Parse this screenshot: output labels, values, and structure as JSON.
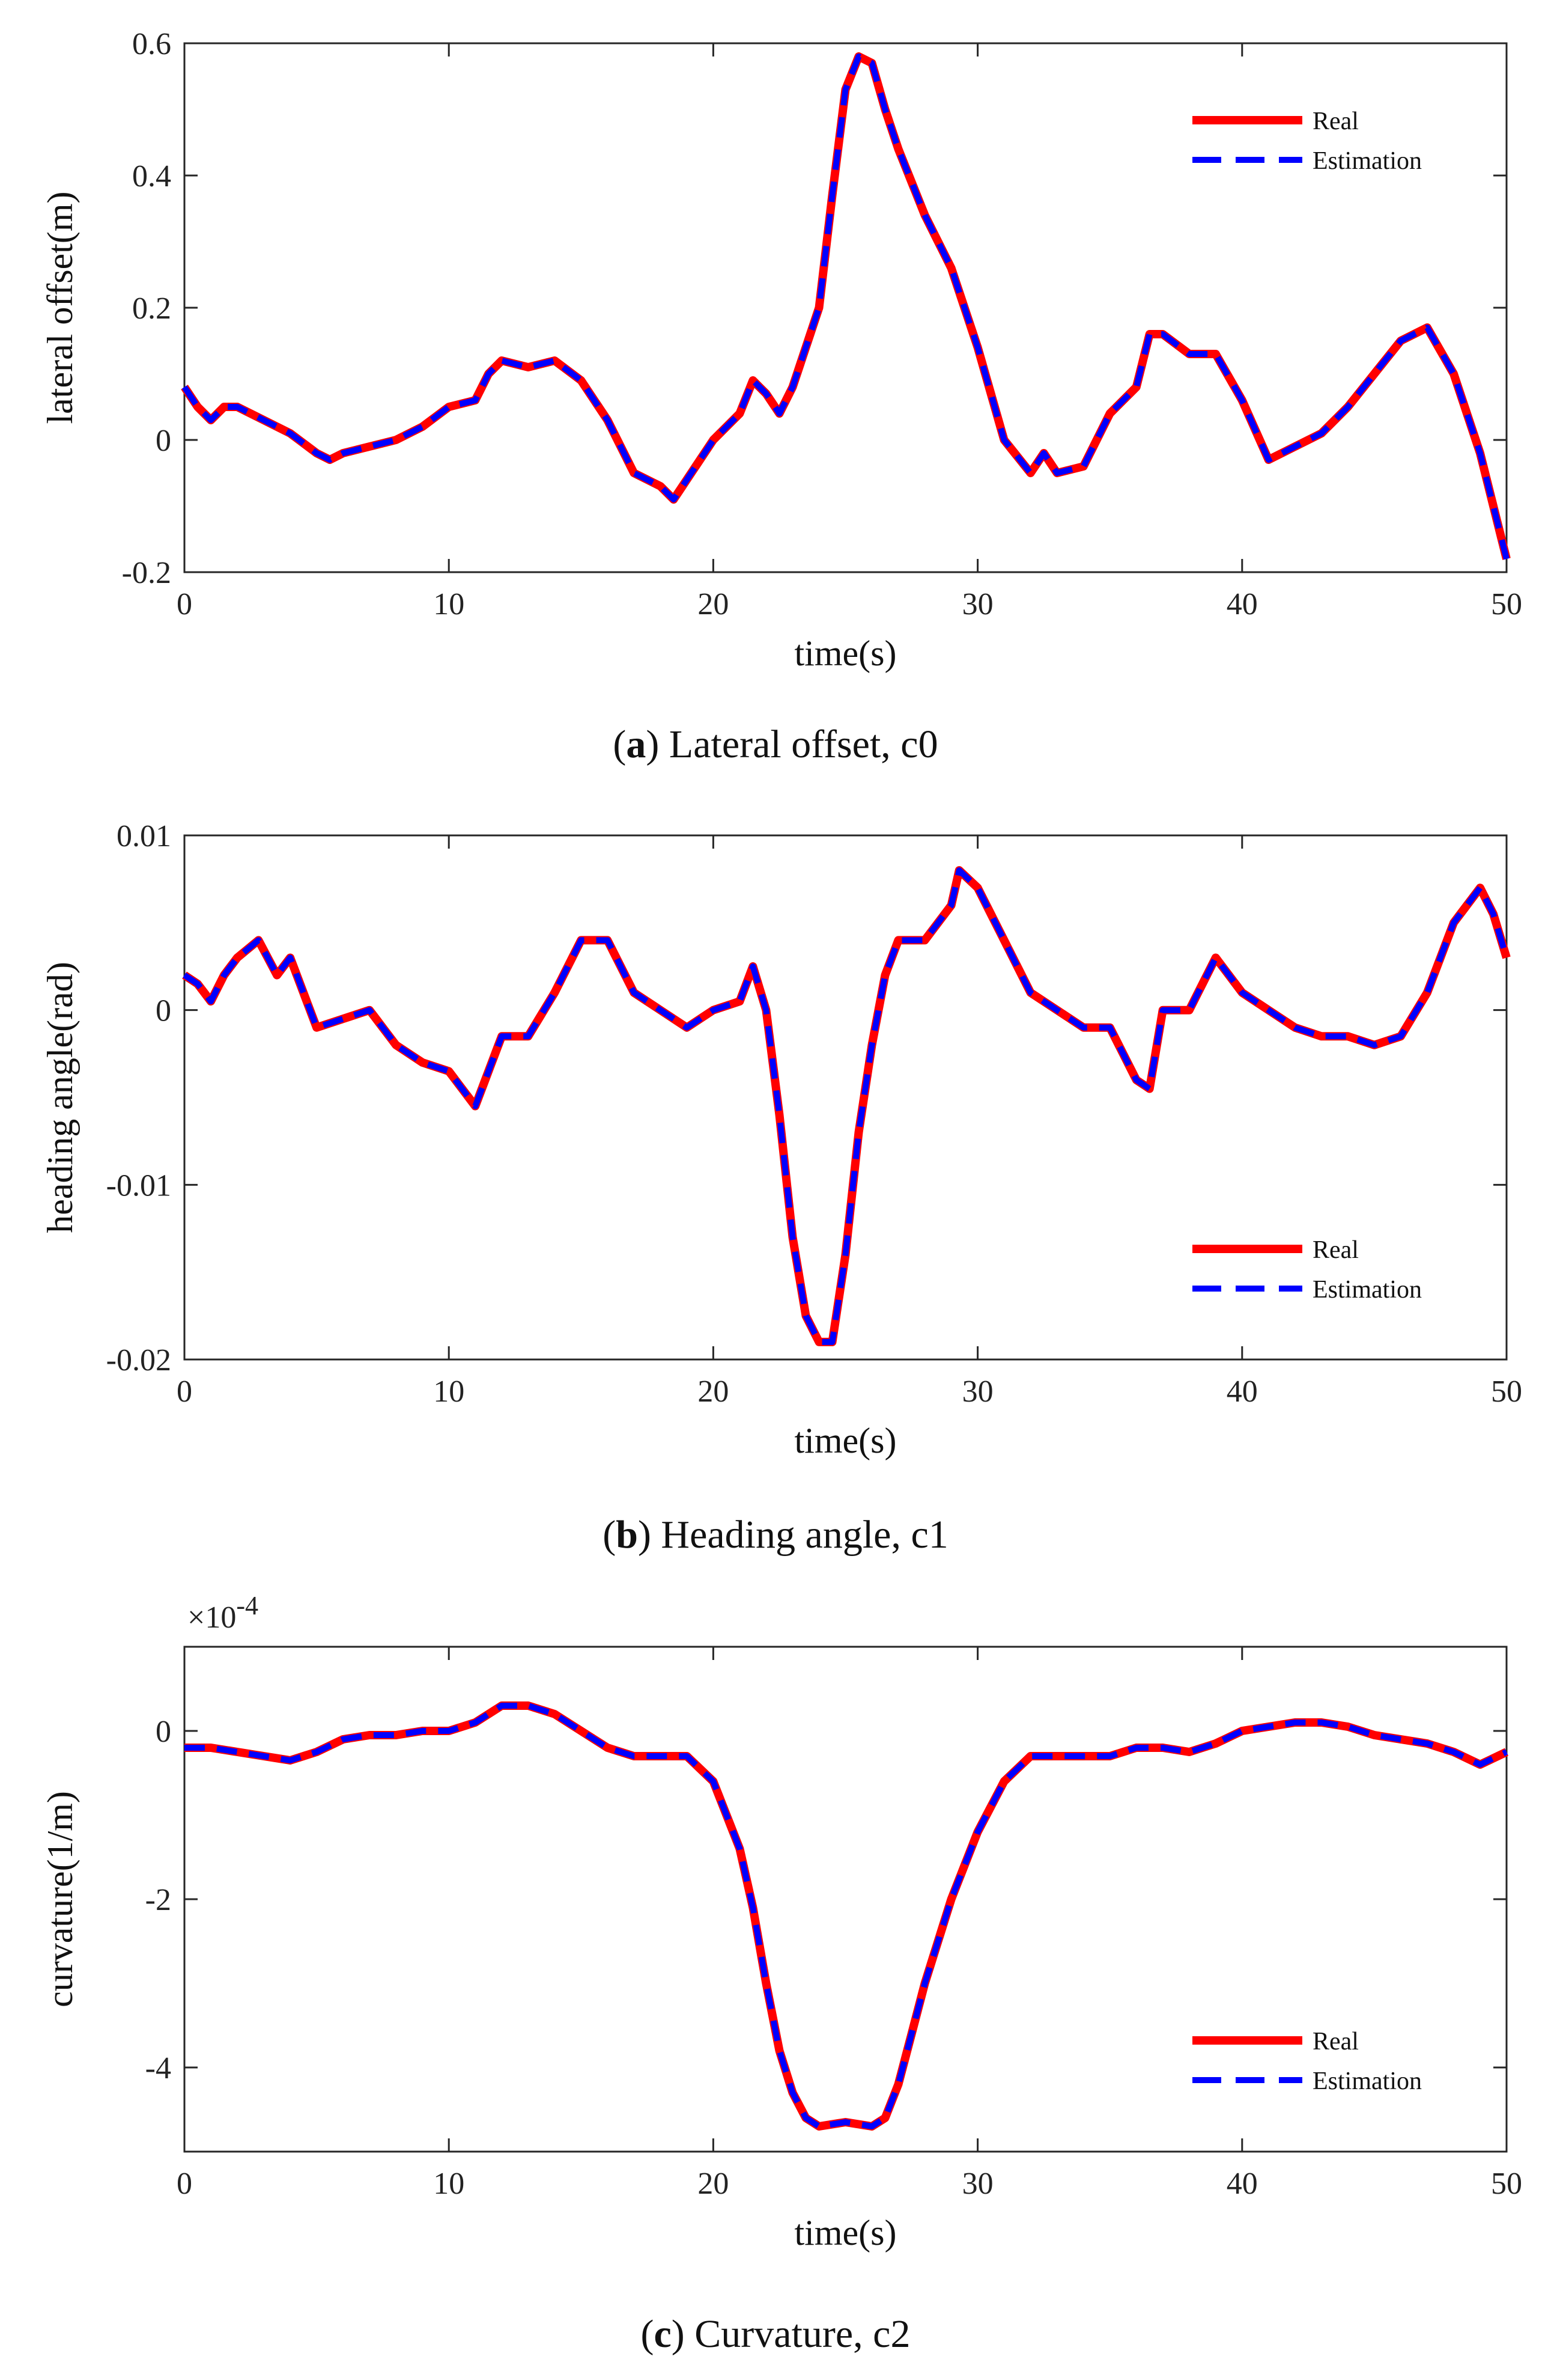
{
  "chart_data": [
    {
      "type": "line",
      "caption_letter": "a",
      "caption_text": "Lateral offset, c0",
      "xlabel": "time(s)",
      "ylabel": "lateral offset(m)",
      "xlim": [
        0,
        50
      ],
      "ylim": [
        -0.2,
        0.6
      ],
      "xticks": [
        0,
        10,
        20,
        30,
        40,
        50
      ],
      "xtick_labels": [
        "0",
        "10",
        "20",
        "30",
        "40",
        "50"
      ],
      "yticks": [
        -0.2,
        0,
        0.2,
        0.4,
        0.6
      ],
      "ytick_labels": [
        "-0.2",
        "0",
        "0.2",
        "0.4",
        "0.6"
      ],
      "exponent_label": "",
      "legend": [
        "Real",
        "Estimation"
      ],
      "legend_position": "top-right",
      "series": [
        {
          "name": "Real",
          "color": "#ff0000"
        },
        {
          "name": "Estimation",
          "color": "#0000ff"
        }
      ],
      "x": [
        0,
        0.5,
        1,
        1.5,
        2,
        3,
        4,
        5,
        5.5,
        6,
        7,
        8,
        9,
        10,
        11,
        11.5,
        12,
        13,
        14,
        15,
        16,
        17,
        18,
        18.5,
        19,
        20,
        21,
        21.5,
        22,
        22.5,
        23,
        24,
        24.5,
        25,
        25.5,
        26,
        26.5,
        27,
        28,
        29,
        30,
        31,
        32,
        32.5,
        33,
        34,
        35,
        36,
        36.5,
        37,
        38,
        39,
        40,
        41,
        42,
        43,
        44,
        45,
        46,
        47,
        48,
        49,
        50
      ],
      "y": [
        0.08,
        0.05,
        0.03,
        0.05,
        0.05,
        0.03,
        0.01,
        -0.02,
        -0.03,
        -0.02,
        -0.01,
        0.0,
        0.02,
        0.05,
        0.06,
        0.1,
        0.12,
        0.11,
        0.12,
        0.09,
        0.03,
        -0.05,
        -0.07,
        -0.09,
        -0.06,
        0.0,
        0.04,
        0.09,
        0.07,
        0.04,
        0.08,
        0.2,
        0.37,
        0.53,
        0.58,
        0.57,
        0.5,
        0.44,
        0.34,
        0.26,
        0.14,
        0.0,
        -0.05,
        -0.02,
        -0.05,
        -0.04,
        0.04,
        0.08,
        0.16,
        0.16,
        0.13,
        0.13,
        0.06,
        -0.03,
        -0.01,
        0.01,
        0.05,
        0.1,
        0.15,
        0.17,
        0.1,
        -0.02,
        -0.18
      ]
    },
    {
      "type": "line",
      "caption_letter": "b",
      "caption_text": "Heading angle, c1",
      "xlabel": "time(s)",
      "ylabel": "heading angle(rad)",
      "xlim": [
        0,
        50
      ],
      "ylim": [
        -0.02,
        0.01
      ],
      "xticks": [
        0,
        10,
        20,
        30,
        40,
        50
      ],
      "xtick_labels": [
        "0",
        "10",
        "20",
        "30",
        "40",
        "50"
      ],
      "yticks": [
        -0.02,
        -0.01,
        0,
        0.01
      ],
      "ytick_labels": [
        "-0.02",
        "-0.01",
        "0",
        "0.01"
      ],
      "exponent_label": "",
      "legend": [
        "Real",
        "Estimation"
      ],
      "legend_position": "lower-right",
      "series": [
        {
          "name": "Real",
          "color": "#ff0000"
        },
        {
          "name": "Estimation",
          "color": "#0000ff"
        }
      ],
      "x": [
        0,
        0.5,
        1,
        1.5,
        2,
        2.8,
        3.5,
        4,
        5,
        6,
        7,
        8,
        9,
        10,
        11,
        12,
        13,
        14,
        15,
        16,
        17,
        18,
        19,
        20,
        21,
        21.5,
        22,
        22.5,
        23,
        23.5,
        24,
        24.5,
        25,
        25.5,
        26,
        26.5,
        27,
        28,
        29,
        29.3,
        30,
        31,
        32,
        33,
        34,
        35,
        36,
        36.5,
        37,
        38,
        39,
        40,
        41,
        42,
        43,
        44,
        45,
        46,
        47,
        48,
        49,
        49.5,
        50
      ],
      "y": [
        0.002,
        0.0015,
        0.0005,
        0.002,
        0.003,
        0.004,
        0.002,
        0.003,
        -0.001,
        -0.0005,
        0.0,
        -0.002,
        -0.003,
        -0.0035,
        -0.0055,
        -0.0015,
        -0.0015,
        0.001,
        0.004,
        0.004,
        0.001,
        0.0,
        -0.001,
        0.0,
        0.0005,
        0.0025,
        0.0,
        -0.006,
        -0.013,
        -0.0175,
        -0.019,
        -0.019,
        -0.014,
        -0.007,
        -0.002,
        0.002,
        0.004,
        0.004,
        0.006,
        0.008,
        0.007,
        0.004,
        0.001,
        0.0,
        -0.001,
        -0.001,
        -0.004,
        -0.0045,
        0.0,
        0.0,
        0.003,
        0.001,
        0.0,
        -0.001,
        -0.0015,
        -0.0015,
        -0.002,
        -0.0015,
        0.001,
        0.005,
        0.007,
        0.0055,
        0.003
      ]
    },
    {
      "type": "line",
      "caption_letter": "c",
      "caption_text": "Curvature, c2",
      "xlabel": "time(s)",
      "ylabel": "curvature(1/m)",
      "xlim": [
        0,
        50
      ],
      "ylim": [
        -5,
        1
      ],
      "xticks": [
        0,
        10,
        20,
        30,
        40,
        50
      ],
      "xtick_labels": [
        "0",
        "10",
        "20",
        "30",
        "40",
        "50"
      ],
      "yticks": [
        -4,
        -2,
        0
      ],
      "ytick_labels": [
        "-4",
        "-2",
        "0"
      ],
      "exponent_label": "×10",
      "exponent_power": "-4",
      "legend": [
        "Real",
        "Estimation"
      ],
      "legend_position": "lower-right",
      "series": [
        {
          "name": "Real",
          "color": "#ff0000"
        },
        {
          "name": "Estimation",
          "color": "#0000ff"
        }
      ],
      "x": [
        0,
        1,
        2,
        3,
        4,
        5,
        6,
        7,
        8,
        9,
        10,
        11,
        12,
        13,
        14,
        15,
        16,
        17,
        18,
        19,
        20,
        21,
        21.5,
        22,
        22.5,
        23,
        23.5,
        24,
        25,
        26,
        26.5,
        27,
        27.5,
        28,
        29,
        30,
        31,
        32,
        33,
        34,
        35,
        36,
        37,
        38,
        39,
        40,
        41,
        42,
        43,
        44,
        45,
        46,
        47,
        48,
        49,
        50
      ],
      "y": [
        -0.2,
        -0.2,
        -0.25,
        -0.3,
        -0.35,
        -0.25,
        -0.1,
        -0.05,
        -0.05,
        0.0,
        0.0,
        0.1,
        0.3,
        0.3,
        0.2,
        0.0,
        -0.2,
        -0.3,
        -0.3,
        -0.3,
        -0.6,
        -1.4,
        -2.1,
        -3.0,
        -3.8,
        -4.3,
        -4.6,
        -4.7,
        -4.65,
        -4.7,
        -4.6,
        -4.2,
        -3.6,
        -3.0,
        -2.0,
        -1.2,
        -0.6,
        -0.3,
        -0.3,
        -0.3,
        -0.3,
        -0.2,
        -0.2,
        -0.25,
        -0.15,
        0.0,
        0.05,
        0.1,
        0.1,
        0.05,
        -0.05,
        -0.1,
        -0.15,
        -0.25,
        -0.4,
        -0.25
      ]
    }
  ]
}
